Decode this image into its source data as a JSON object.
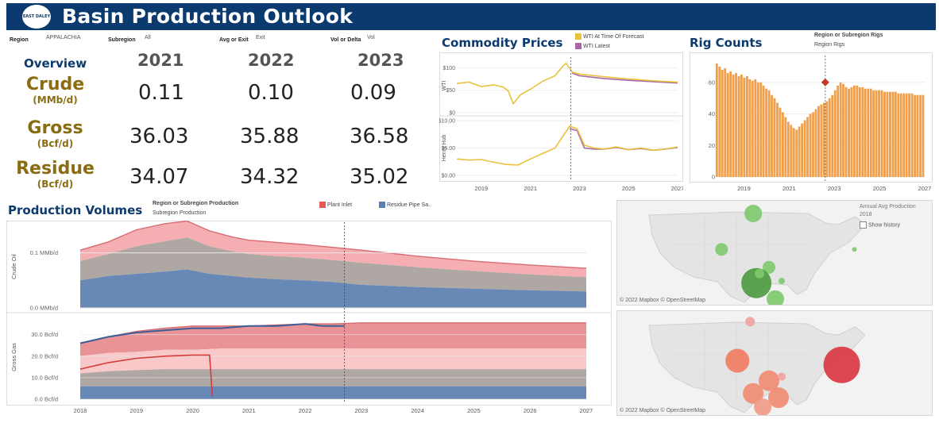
{
  "header": {
    "logo_text": "EAST DALEY",
    "title": "Basin Production Outlook"
  },
  "filters": {
    "region_label": "Region",
    "region_value": "APPALACHIA",
    "subregion_label": "Subregion",
    "subregion_value": "All",
    "avg_exit_label": "Avg or Exit",
    "avg_exit_value": "Exit",
    "vol_delta_label": "Vol or Delta",
    "vol_delta_value": "Vol"
  },
  "overview": {
    "title": "Overview",
    "years": [
      "2021",
      "2022",
      "2023"
    ],
    "rows": [
      {
        "label": "Crude",
        "unit": "(MMb/d)",
        "values": [
          "0.11",
          "0.10",
          "0.09"
        ]
      },
      {
        "label": "Gross",
        "unit": "(Bcf/d)",
        "values": [
          "36.03",
          "35.88",
          "36.58"
        ]
      },
      {
        "label": "Residue",
        "unit": "(Bcf/d)",
        "values": [
          "34.07",
          "34.32",
          "35.02"
        ]
      }
    ]
  },
  "commodity": {
    "title": "Commodity Prices",
    "legend": [
      "WTI At Time Of Forecast",
      "WTI Latest"
    ],
    "ylabel_top": "WTI",
    "ylabel_bottom": "Henry Hub",
    "yticks_top": [
      "$100",
      "$50",
      "$0"
    ],
    "yticks_bottom": [
      "$10.00",
      "$5.00",
      "$0.00"
    ],
    "xticks": [
      "2019",
      "2021",
      "2023",
      "2025",
      "2027"
    ]
  },
  "rigs": {
    "title": "Rig Counts",
    "selector_label": "Region or Subregion Rigs",
    "selector_value": "Region Rigs",
    "yticks": [
      "60",
      "40",
      "20",
      "0"
    ],
    "xticks": [
      "2019",
      "2021",
      "2023",
      "2025",
      "2027"
    ]
  },
  "production": {
    "title": "Production Volumes",
    "selector_label": "Region or Subregion Production",
    "selector_value": "Subregion Production",
    "legend": [
      "Plant Inlet",
      "Residue Pipe Sa.."
    ],
    "ylabel_top": "Crude Oil",
    "ylabel_bottom": "Gross Gas",
    "yticks_top": [
      "0.1 MMb/d",
      "0.0 MMb/d"
    ],
    "yticks_bottom": [
      "30.0 Bcf/d",
      "20.0 Bcf/d",
      "10.0 Bcf/d",
      "0.0 Bcf/d"
    ],
    "xticks": [
      "2018",
      "2019",
      "2020",
      "2021",
      "2022",
      "2023",
      "2024",
      "2025",
      "2026",
      "2027"
    ]
  },
  "maps": {
    "legend_title": "Annual Avg Production",
    "legend_year": "2018",
    "show_history": "Show history",
    "attribution": "© 2022 Mapbox © OpenStreetMap"
  },
  "colors": {
    "navy": "#0b3a6e",
    "gold": "#8a6d10",
    "wti_forecast": "#e8c23a",
    "wti_latest": "#a866a8",
    "rig_bar": "#f0a04b",
    "rig_marker": "#c0392b",
    "plant_inlet": "#e05a5a",
    "residue": "#5b7fb0"
  },
  "chart_data": [
    {
      "type": "line",
      "title": "Commodity Prices - WTI",
      "ylabel": "WTI",
      "ylim": [
        0,
        120
      ],
      "x": [
        2018.0,
        2018.5,
        2019.0,
        2019.5,
        2019.9,
        2020.1,
        2020.3,
        2020.6,
        2021.0,
        2021.5,
        2022.0,
        2022.3,
        2022.45,
        2022.7,
        2023.0,
        2024.0,
        2025.0,
        2026.0,
        2027.0
      ],
      "series": [
        {
          "name": "WTI At Time Of Forecast",
          "values": [
            65,
            68,
            58,
            62,
            57,
            48,
            20,
            40,
            52,
            70,
            82,
            102,
            110,
            90,
            86,
            80,
            75,
            71,
            68
          ]
        },
        {
          "name": "WTI Latest",
          "values": [
            null,
            null,
            null,
            null,
            null,
            null,
            null,
            null,
            null,
            null,
            null,
            null,
            null,
            88,
            82,
            76,
            72,
            69,
            66
          ]
        }
      ]
    },
    {
      "type": "line",
      "title": "Commodity Prices - Henry Hub",
      "ylabel": "Henry Hub",
      "ylim": [
        0,
        10
      ],
      "x": [
        2018.0,
        2018.5,
        2019.0,
        2019.5,
        2020.0,
        2020.5,
        2021.0,
        2021.5,
        2022.0,
        2022.3,
        2022.6,
        2022.9,
        2023.2,
        2023.6,
        2024.0,
        2024.5,
        2025.0,
        2025.5,
        2026.0,
        2026.5,
        2027.0
      ],
      "series": [
        {
          "name": "WTI At Time Of Forecast",
          "values": [
            3.0,
            2.8,
            2.9,
            2.4,
            2.0,
            1.9,
            3.0,
            4.0,
            5.0,
            7.0,
            9.0,
            8.5,
            5.5,
            5.0,
            4.8,
            5.2,
            4.7,
            5.0,
            4.6,
            4.8,
            5.2
          ]
        },
        {
          "name": "WTI Latest",
          "values": [
            null,
            null,
            null,
            null,
            null,
            null,
            null,
            null,
            null,
            null,
            8.5,
            8.2,
            5.0,
            4.8,
            4.8,
            5.1,
            4.7,
            4.9,
            4.6,
            4.8,
            5.1
          ]
        }
      ]
    },
    {
      "type": "bar",
      "title": "Rig Counts",
      "ylim": [
        0,
        75
      ],
      "x_start": 2018.0,
      "x_end": 2027.0,
      "values": [
        72,
        70,
        68,
        69,
        66,
        67,
        65,
        66,
        64,
        65,
        63,
        64,
        62,
        61,
        62,
        60,
        60,
        58,
        56,
        55,
        52,
        50,
        47,
        44,
        41,
        38,
        35,
        33,
        31,
        30,
        32,
        34,
        36,
        38,
        40,
        41,
        43,
        45,
        46,
        47,
        48,
        50,
        52,
        55,
        58,
        60,
        59,
        57,
        56,
        57,
        58,
        58,
        57,
        57,
        56,
        56,
        56,
        55,
        55,
        55,
        55,
        54,
        54,
        54,
        54,
        54,
        53,
        53,
        53,
        53,
        53,
        53,
        52,
        52,
        52,
        52
      ],
      "marker": {
        "x": 2022.6,
        "value": 60
      }
    },
    {
      "type": "area",
      "title": "Production Volumes - Crude Oil",
      "ylabel": "Crude Oil",
      "ylim": [
        0,
        0.15
      ],
      "x": [
        2018.0,
        2018.5,
        2019.0,
        2019.5,
        2019.9,
        2020.3,
        2020.7,
        2021.0,
        2021.5,
        2022.0,
        2022.5,
        2023.0,
        2024.0,
        2025.0,
        2026.0,
        2027.0
      ],
      "series": [
        {
          "name": "Residue Pipe Sa..",
          "values": [
            0.05,
            0.058,
            0.062,
            0.066,
            0.07,
            0.062,
            0.058,
            0.055,
            0.052,
            0.05,
            0.047,
            0.042,
            0.038,
            0.035,
            0.032,
            0.03
          ]
        },
        {
          "name": "Gray band",
          "values": [
            0.035,
            0.04,
            0.05,
            0.055,
            0.058,
            0.05,
            0.045,
            0.043,
            0.042,
            0.041,
            0.04,
            0.04,
            0.036,
            0.032,
            0.029,
            0.026
          ]
        },
        {
          "name": "Plant Inlet",
          "values": [
            0.02,
            0.022,
            0.03,
            0.032,
            0.03,
            0.028,
            0.026,
            0.025,
            0.025,
            0.024,
            0.023,
            0.023,
            0.02,
            0.018,
            0.017,
            0.016
          ]
        }
      ]
    },
    {
      "type": "area",
      "title": "Production Volumes - Gross Gas",
      "ylabel": "Gross Gas",
      "ylim": [
        0,
        38
      ],
      "x": [
        2018.0,
        2018.5,
        2019.0,
        2019.5,
        2020.0,
        2020.5,
        2021.0,
        2021.5,
        2022.0,
        2022.5,
        2023.0,
        2024.0,
        2025.0,
        2026.0,
        2027.0
      ],
      "series": [
        {
          "name": "Residue Pipe Sa..",
          "values": [
            6.0,
            6.0,
            6.0,
            6.0,
            6.0,
            6.0,
            6.0,
            6.0,
            6.0,
            6.0,
            6.0,
            6.0,
            6.0,
            6.0,
            6.0
          ]
        },
        {
          "name": "Gray band",
          "values": [
            6.0,
            7.0,
            7.5,
            8.0,
            8.0,
            8.0,
            8.0,
            8.0,
            8.0,
            8.0,
            8.0,
            8.0,
            8.0,
            8.0,
            8.0
          ]
        },
        {
          "name": "Light pink band",
          "values": [
            8.0,
            8.5,
            8.5,
            9.0,
            9.0,
            9.5,
            9.5,
            9.5,
            9.5,
            9.5,
            9.5,
            9.5,
            9.5,
            9.5,
            9.5
          ]
        },
        {
          "name": "Plant Inlet",
          "values": [
            6.0,
            7.5,
            9.5,
            10.0,
            11.0,
            10.5,
            10.5,
            11.0,
            11.5,
            11.5,
            12.0,
            12.0,
            12.0,
            12.0,
            12.0
          ]
        }
      ],
      "line_blue": {
        "x": [
          2018.0,
          2018.5,
          2019.0,
          2019.5,
          2020.0,
          2020.5,
          2021.0,
          2021.5,
          2022.0,
          2022.3,
          2022.7
        ],
        "values": [
          26,
          29,
          31,
          32,
          33,
          33,
          34,
          34,
          35,
          34,
          34
        ]
      },
      "line_red": {
        "x": [
          2018.0,
          2018.5,
          2019.0,
          2019.5,
          2020.0,
          2020.3,
          2020.35
        ],
        "values": [
          14,
          17,
          19,
          20,
          20.5,
          20.5,
          1.5
        ]
      },
      "forecast_x": 2022.7
    },
    {
      "type": "scatter",
      "title": "Map - Annual Avg Production (top)",
      "points": [
        {
          "x": 0.43,
          "y": 0.12,
          "size": 11,
          "color": "#7dc96b"
        },
        {
          "x": 0.33,
          "y": 0.46,
          "size": 8,
          "color": "#7dc96b"
        },
        {
          "x": 0.48,
          "y": 0.63,
          "size": 8,
          "color": "#7dc96b"
        },
        {
          "x": 0.44,
          "y": 0.78,
          "size": 19,
          "color": "#4a9a3e"
        },
        {
          "x": 0.5,
          "y": 0.93,
          "size": 11,
          "color": "#7dc96b"
        },
        {
          "x": 0.52,
          "y": 0.76,
          "size": 4,
          "color": "#7dc96b"
        },
        {
          "x": 0.75,
          "y": 0.46,
          "size": 3,
          "color": "#7dc96b"
        },
        {
          "x": 0.45,
          "y": 0.69,
          "size": 6,
          "color": "#7dc96b"
        }
      ]
    },
    {
      "type": "scatter",
      "title": "Map - Annual Avg Production (bottom)",
      "points": [
        {
          "x": 0.42,
          "y": 0.1,
          "size": 6,
          "color": "#f0a0a0"
        },
        {
          "x": 0.38,
          "y": 0.47,
          "size": 15,
          "color": "#ef7a5e"
        },
        {
          "x": 0.48,
          "y": 0.66,
          "size": 13,
          "color": "#ef8a70"
        },
        {
          "x": 0.52,
          "y": 0.62,
          "size": 5,
          "color": "#f0a0a0"
        },
        {
          "x": 0.43,
          "y": 0.78,
          "size": 13,
          "color": "#ef8a70"
        },
        {
          "x": 0.51,
          "y": 0.82,
          "size": 13,
          "color": "#ef8a70"
        },
        {
          "x": 0.46,
          "y": 0.91,
          "size": 11,
          "color": "#ef9a85"
        },
        {
          "x": 0.71,
          "y": 0.51,
          "size": 23,
          "color": "#d9343f"
        }
      ]
    }
  ]
}
